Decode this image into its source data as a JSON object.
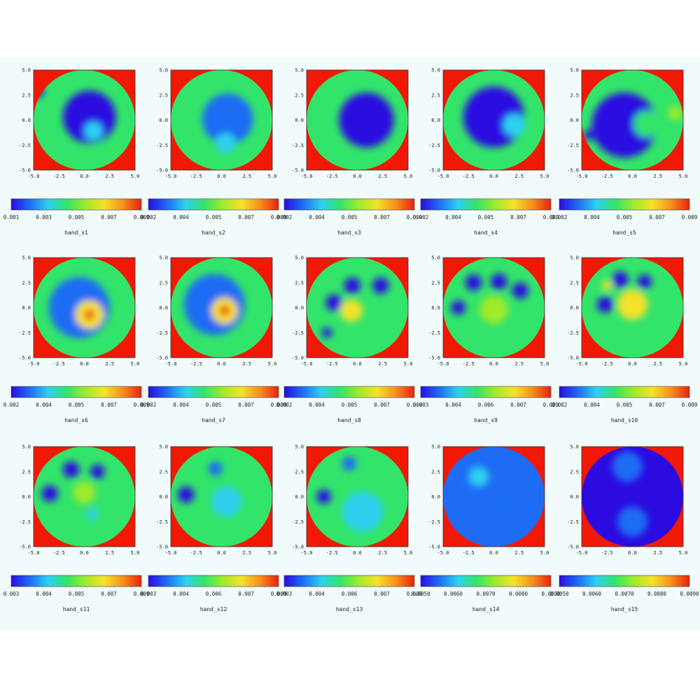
{
  "chart_data": [
    {
      "type": "heatmap",
      "caption": "hand_s1",
      "xlim": [
        -5,
        5
      ],
      "ylim": [
        -5,
        5
      ],
      "xticks": [
        "-5.0",
        "-2.5",
        "0.0",
        "2.5",
        "5.0"
      ],
      "yticks": [
        "5.0",
        "2.5",
        "0.0",
        "-2.5",
        "-5.0"
      ],
      "colorbar_ticks": [
        "0.001",
        "0.003",
        "0.005",
        "0.007",
        "0.009"
      ],
      "blobs": [
        {
          "x": 0.5,
          "y": 0.3,
          "r": 2.6,
          "level": 0.04
        },
        {
          "x": 0.9,
          "y": -1.1,
          "r": 0.9,
          "level": 0.35
        },
        {
          "x": -4.5,
          "y": 2.8,
          "r": 0.5,
          "level": 0.02
        }
      ],
      "background_level": 0.45
    },
    {
      "type": "heatmap",
      "caption": "hand_s2",
      "xlim": [
        -5,
        5
      ],
      "ylim": [
        -5,
        5
      ],
      "xticks": [
        "-5.0",
        "-2.5",
        "0.0",
        "2.5",
        "5.0"
      ],
      "yticks": [
        "5.0",
        "2.5",
        "0.0",
        "-2.5",
        "-5.0"
      ],
      "colorbar_ticks": [
        "0.002",
        "0.004",
        "0.005",
        "0.007",
        "0.009"
      ],
      "blobs": [
        {
          "x": 0.6,
          "y": 0.1,
          "r": 2.5,
          "level": 0.08
        },
        {
          "x": 0.4,
          "y": -2.3,
          "r": 1.0,
          "level": 0.3
        }
      ],
      "background_level": 0.45
    },
    {
      "type": "heatmap",
      "caption": "hand_s3",
      "xlim": [
        -5,
        5
      ],
      "ylim": [
        -5,
        5
      ],
      "xticks": [
        "-5.0",
        "-2.5",
        "0.0",
        "2.5",
        "5.0"
      ],
      "yticks": [
        "5.0",
        "2.5",
        "0.0",
        "-2.5",
        "-5.0"
      ],
      "colorbar_ticks": [
        "0.002",
        "0.004",
        "0.005",
        "0.007",
        "0.009"
      ],
      "blobs": [
        {
          "x": 0.9,
          "y": 0.0,
          "r": 2.7,
          "level": 0.03
        }
      ],
      "background_level": 0.45
    },
    {
      "type": "heatmap",
      "caption": "hand_s4",
      "xlim": [
        -5,
        5
      ],
      "ylim": [
        -5,
        5
      ],
      "xticks": [
        "-5.0",
        "-2.5",
        "0.0",
        "2.5",
        "5.0"
      ],
      "yticks": [
        "5.0",
        "2.5",
        "0.0",
        "-2.5",
        "-5.0"
      ],
      "colorbar_ticks": [
        "0.002",
        "0.004",
        "0.005",
        "0.007",
        "0.009"
      ],
      "blobs": [
        {
          "x": 0.0,
          "y": 0.3,
          "r": 3.0,
          "level": 0.05
        },
        {
          "x": 2.0,
          "y": -0.5,
          "r": 1.1,
          "level": 0.35
        }
      ],
      "background_level": 0.45
    },
    {
      "type": "heatmap",
      "caption": "hand_s5",
      "xlim": [
        -5,
        5
      ],
      "ylim": [
        -5,
        5
      ],
      "xticks": [
        "-5.0",
        "-2.5",
        "0.0",
        "2.5",
        "5.0"
      ],
      "yticks": [
        "5.0",
        "2.5",
        "0.0",
        "-2.5",
        "-5.0"
      ],
      "colorbar_ticks": [
        "0.002",
        "0.004",
        "0.005",
        "0.007",
        "0.009"
      ],
      "blobs": [
        {
          "x": -0.8,
          "y": -0.5,
          "r": 3.2,
          "level": 0.04
        },
        {
          "x": 1.4,
          "y": -0.4,
          "r": 1.3,
          "level": 0.4
        },
        {
          "x": 4.2,
          "y": 0.7,
          "r": 0.7,
          "level": 0.55
        },
        {
          "x": -4.3,
          "y": -1.5,
          "r": 0.5,
          "level": 0.05
        }
      ],
      "background_level": 0.45
    },
    {
      "type": "heatmap",
      "caption": "hand_s6",
      "xlim": [
        -5,
        5
      ],
      "ylim": [
        -5,
        5
      ],
      "xticks": [
        "-5.0",
        "-2.5",
        "0.0",
        "2.5",
        "5.0"
      ],
      "yticks": [
        "5.0",
        "2.5",
        "0.0",
        "-2.5",
        "-5.0"
      ],
      "colorbar_ticks": [
        "0.002",
        "0.004",
        "0.005",
        "0.007",
        "0.009"
      ],
      "blobs": [
        {
          "x": -0.5,
          "y": 0.0,
          "r": 3.0,
          "level": 0.08
        },
        {
          "x": 0.5,
          "y": -0.7,
          "r": 1.4,
          "level": 0.7
        },
        {
          "x": 0.5,
          "y": -0.7,
          "r": 0.5,
          "level": 0.97
        }
      ],
      "background_level": 0.45
    },
    {
      "type": "heatmap",
      "caption": "hand_s7",
      "xlim": [
        -5,
        5
      ],
      "ylim": [
        -5,
        5
      ],
      "xticks": [
        "-5.0",
        "-2.5",
        "0.0",
        "2.5",
        "5.0"
      ],
      "yticks": [
        "5.0",
        "2.5",
        "0.0",
        "-2.5",
        "-5.0"
      ],
      "colorbar_ticks": [
        "0.002",
        "0.004",
        "0.005",
        "0.007",
        "0.009"
      ],
      "blobs": [
        {
          "x": -0.7,
          "y": 0.3,
          "r": 3.0,
          "level": 0.08
        },
        {
          "x": 0.3,
          "y": -0.3,
          "r": 1.3,
          "level": 0.7
        },
        {
          "x": 0.3,
          "y": -0.3,
          "r": 0.5,
          "level": 0.93
        }
      ],
      "background_level": 0.45
    },
    {
      "type": "heatmap",
      "caption": "hand_s8",
      "xlim": [
        -5,
        5
      ],
      "ylim": [
        -5,
        5
      ],
      "xticks": [
        "-5.0",
        "-2.5",
        "0.0",
        "2.5",
        "5.0"
      ],
      "yticks": [
        "5.0",
        "2.5",
        "0.0",
        "-2.5",
        "-5.0"
      ],
      "colorbar_ticks": [
        "0.002",
        "0.004",
        "0.005",
        "0.007",
        "0.009"
      ],
      "blobs": [
        {
          "x": -2.3,
          "y": 0.5,
          "r": 0.8,
          "level": 0.05
        },
        {
          "x": -0.5,
          "y": 2.2,
          "r": 0.8,
          "level": 0.05
        },
        {
          "x": 2.3,
          "y": 2.2,
          "r": 0.8,
          "level": 0.05
        },
        {
          "x": -0.6,
          "y": -0.3,
          "r": 1.1,
          "level": 0.75
        },
        {
          "x": -3.0,
          "y": -2.5,
          "r": 0.5,
          "level": 0.05
        }
      ],
      "background_level": 0.42
    },
    {
      "type": "heatmap",
      "caption": "hand_s9",
      "xlim": [
        -5,
        5
      ],
      "ylim": [
        -5,
        5
      ],
      "xticks": [
        "-5.0",
        "-2.5",
        "0.0",
        "2.5",
        "5.0"
      ],
      "yticks": [
        "5.0",
        "2.5",
        "0.0",
        "-2.5",
        "-5.0"
      ],
      "colorbar_ticks": [
        "0.003",
        "0.004",
        "0.006",
        "0.007",
        "0.009"
      ],
      "blobs": [
        {
          "x": -2.0,
          "y": 2.5,
          "r": 0.8,
          "level": 0.05
        },
        {
          "x": 0.5,
          "y": 2.6,
          "r": 0.8,
          "level": 0.05
        },
        {
          "x": 2.6,
          "y": 1.7,
          "r": 0.8,
          "level": 0.05
        },
        {
          "x": -3.5,
          "y": 0.0,
          "r": 0.7,
          "level": 0.05
        },
        {
          "x": 0.0,
          "y": -0.2,
          "r": 1.4,
          "level": 0.62
        }
      ],
      "background_level": 0.45
    },
    {
      "type": "heatmap",
      "caption": "hand_s10",
      "xlim": [
        -5,
        5
      ],
      "ylim": [
        -5,
        5
      ],
      "xticks": [
        "-5.0",
        "-2.5",
        "0.0",
        "2.5",
        "5.0"
      ],
      "yticks": [
        "5.0",
        "2.5",
        "0.0",
        "-2.5",
        "-5.0"
      ],
      "colorbar_ticks": [
        "0.002",
        "0.004",
        "0.005",
        "0.007",
        "0.009"
      ],
      "blobs": [
        {
          "x": -1.2,
          "y": 2.8,
          "r": 0.8,
          "level": 0.05
        },
        {
          "x": 1.2,
          "y": 2.6,
          "r": 0.7,
          "level": 0.05
        },
        {
          "x": -2.7,
          "y": 0.3,
          "r": 0.8,
          "level": 0.05
        },
        {
          "x": -2.5,
          "y": 2.2,
          "r": 0.5,
          "level": 0.7
        },
        {
          "x": 0.0,
          "y": 0.3,
          "r": 1.5,
          "level": 0.65
        }
      ],
      "background_level": 0.45
    },
    {
      "type": "heatmap",
      "caption": "hand_s11",
      "xlim": [
        -5,
        5
      ],
      "ylim": [
        -5,
        5
      ],
      "xticks": [
        "-5.0",
        "-2.5",
        "0.0",
        "2.5",
        "5.0"
      ],
      "yticks": [
        "5.0",
        "2.5",
        "0.0",
        "-2.5",
        "-5.0"
      ],
      "colorbar_ticks": [
        "0.003",
        "0.004",
        "0.005",
        "0.007",
        "0.009"
      ],
      "blobs": [
        {
          "x": -1.3,
          "y": 2.7,
          "r": 0.8,
          "level": 0.05
        },
        {
          "x": 1.3,
          "y": 2.5,
          "r": 0.7,
          "level": 0.05
        },
        {
          "x": -3.4,
          "y": 0.3,
          "r": 0.8,
          "level": 0.05
        },
        {
          "x": 0.0,
          "y": 0.4,
          "r": 1.1,
          "level": 0.6
        },
        {
          "x": 0.8,
          "y": -1.8,
          "r": 0.6,
          "level": 0.3
        }
      ],
      "background_level": 0.45
    },
    {
      "type": "heatmap",
      "caption": "hand_s12",
      "xlim": [
        -5,
        5
      ],
      "ylim": [
        -5,
        5
      ],
      "xticks": [
        "-5.0",
        "-2.5",
        "0.0",
        "2.5",
        "5.0"
      ],
      "yticks": [
        "5.0",
        "2.5",
        "0.0",
        "-2.5",
        "-5.0"
      ],
      "colorbar_ticks": [
        "0.003",
        "0.004",
        "0.006",
        "0.007",
        "0.009"
      ],
      "blobs": [
        {
          "x": -0.6,
          "y": 2.8,
          "r": 0.7,
          "level": 0.08
        },
        {
          "x": -3.5,
          "y": 0.2,
          "r": 0.8,
          "level": 0.05
        },
        {
          "x": 0.5,
          "y": -0.5,
          "r": 1.5,
          "level": 0.35
        }
      ],
      "background_level": 0.45
    },
    {
      "type": "heatmap",
      "caption": "hand_s13",
      "xlim": [
        -5,
        5
      ],
      "ylim": [
        -5,
        5
      ],
      "xticks": [
        "-5.0",
        "-2.5",
        "0.0",
        "2.5",
        "5.0"
      ],
      "yticks": [
        "5.0",
        "2.5",
        "0.0",
        "-2.5",
        "-5.0"
      ],
      "colorbar_ticks": [
        "0.003",
        "0.004",
        "0.006",
        "0.007",
        "0.009"
      ],
      "blobs": [
        {
          "x": -0.8,
          "y": 3.3,
          "r": 0.7,
          "level": 0.08
        },
        {
          "x": -3.3,
          "y": 0.0,
          "r": 0.7,
          "level": 0.05
        },
        {
          "x": 0.5,
          "y": -1.5,
          "r": 2.0,
          "level": 0.3
        }
      ],
      "background_level": 0.4
    },
    {
      "type": "heatmap",
      "caption": "hand_s14",
      "xlim": [
        -5,
        5
      ],
      "ylim": [
        -5,
        5
      ],
      "xticks": [
        "-5.0",
        "-2.5",
        "0.0",
        "2.5",
        "5.0"
      ],
      "yticks": [
        "5.0",
        "2.5",
        "0.0",
        "-2.5",
        "-5.0"
      ],
      "colorbar_ticks": [
        "0.0050",
        "0.0060",
        "0.0070",
        "0.0080",
        "0.0090"
      ],
      "blobs": [
        {
          "x": -1.5,
          "y": 2.0,
          "r": 1.0,
          "level": 0.22
        },
        {
          "x": 2.0,
          "y": -1.0,
          "r": 1.0,
          "level": 0.2
        }
      ],
      "background_level": 0.1
    },
    {
      "type": "heatmap",
      "caption": "hand_s15",
      "xlim": [
        -5,
        5
      ],
      "ylim": [
        -5,
        5
      ],
      "xticks": [
        "-5.0",
        "-2.5",
        "0.0",
        "2.5",
        "5.0"
      ],
      "yticks": [
        "5.0",
        "2.5",
        "0.0",
        "-2.5",
        "-5.0"
      ],
      "colorbar_ticks": [
        "0.0050",
        "0.0060",
        "0.0070",
        "0.0080",
        "0.0090"
      ],
      "blobs": [
        {
          "x": -0.5,
          "y": 3.0,
          "r": 1.5,
          "level": 0.12
        },
        {
          "x": 0.0,
          "y": -2.5,
          "r": 1.5,
          "level": 0.1
        }
      ],
      "background_level": 0.05
    }
  ],
  "colors": {
    "outside_disk": "#f21806",
    "colormap": [
      "#2b0be0",
      "#1e6cf4",
      "#2ed0f0",
      "#33e46a",
      "#9fea2c",
      "#f4e22a",
      "#f6901e",
      "#e8220e"
    ]
  }
}
